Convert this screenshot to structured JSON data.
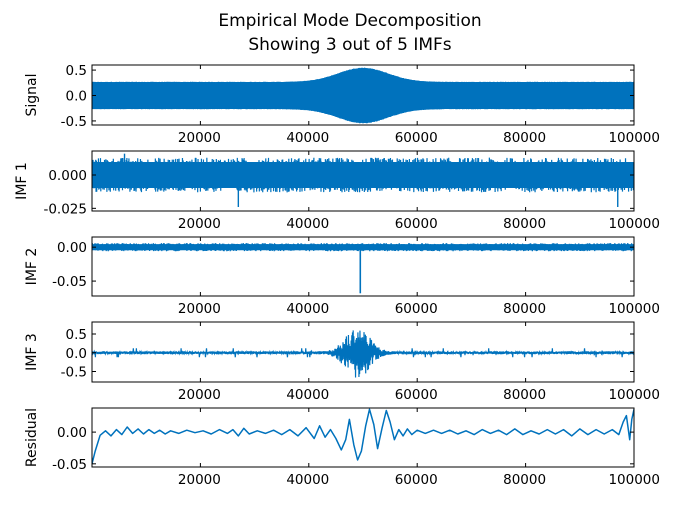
{
  "figure": {
    "title_line1": "Empirical Mode Decomposition",
    "title_line2": "Showing 3 out of 5 IMFs",
    "line_color": "#0072BD"
  },
  "chart_data": [
    {
      "type": "line",
      "name": "signal",
      "ylabel": "Signal",
      "xlim": [
        1,
        100000
      ],
      "ylim": [
        -0.58,
        0.6
      ],
      "yticks": [
        0.5,
        0.0,
        -0.5
      ],
      "ytick_labels": [
        "0.5",
        "0.0",
        "-0.5"
      ],
      "xticks": [
        20000,
        40000,
        60000,
        80000,
        100000
      ],
      "xtick_labels": [
        "20000",
        "40000",
        "60000",
        "80000",
        "100000"
      ],
      "envelope": {
        "base": 0.27,
        "peak": 0.55,
        "center": 50000,
        "width": 6500
      },
      "spike": {
        "x": 50000,
        "y": 0.54
      }
    },
    {
      "type": "line",
      "name": "imf1",
      "ylabel": "IMF 1",
      "xlim": [
        1,
        100000
      ],
      "ylim": [
        -0.027,
        0.018
      ],
      "yticks": [
        0.0,
        -0.025
      ],
      "ytick_labels": [
        "0.000",
        "-0.025"
      ],
      "xticks": [
        20000,
        40000,
        60000,
        80000,
        100000
      ],
      "xtick_labels": [
        "20000",
        "40000",
        "60000",
        "80000",
        "100000"
      ],
      "envelope": {
        "base": 0.013,
        "peak": 0.013,
        "center": 50000,
        "width": 6500
      },
      "outliers": [
        [
          27000,
          -0.024
        ],
        [
          97000,
          -0.024
        ],
        [
          6000,
          0.016
        ]
      ]
    },
    {
      "type": "line",
      "name": "imf2",
      "ylabel": "IMF 2",
      "xlim": [
        1,
        100000
      ],
      "ylim": [
        -0.072,
        0.015
      ],
      "yticks": [
        0.0,
        -0.05
      ],
      "ytick_labels": [
        "0.00",
        "-0.05"
      ],
      "xticks": [
        20000,
        40000,
        60000,
        80000,
        100000
      ],
      "xtick_labels": [
        "20000",
        "40000",
        "60000",
        "80000",
        "100000"
      ],
      "envelope": {
        "base": 0.006,
        "peak": 0.006,
        "center": 50000,
        "width": 6500
      },
      "spike": {
        "x": 49500,
        "y": -0.068
      }
    },
    {
      "type": "line",
      "name": "imf3",
      "ylabel": "IMF 3",
      "xlim": [
        1,
        100000
      ],
      "ylim": [
        -0.78,
        0.82
      ],
      "yticks": [
        0.5,
        0.0,
        -0.5
      ],
      "ytick_labels": [
        "0.5",
        "0.0",
        "-0.5"
      ],
      "xticks": [
        20000,
        40000,
        60000,
        80000,
        100000
      ],
      "xtick_labels": [
        "20000",
        "40000",
        "60000",
        "80000",
        "100000"
      ],
      "envelope": {
        "base": 0.04,
        "peak": 0.7,
        "center": 49000,
        "width": 3000
      }
    },
    {
      "type": "line",
      "name": "residual",
      "ylabel": "Residual",
      "xlim": [
        1,
        100000
      ],
      "ylim": [
        -0.055,
        0.038
      ],
      "yticks": [
        0.0,
        -0.05
      ],
      "ytick_labels": [
        "0.00",
        "-0.05"
      ],
      "xticks": [
        20000,
        40000,
        60000,
        80000,
        100000
      ],
      "xtick_labels": [
        "20000",
        "40000",
        "60000",
        "80000",
        "100000"
      ],
      "points": [
        [
          0,
          -0.05
        ],
        [
          600,
          -0.03
        ],
        [
          1500,
          -0.005
        ],
        [
          2500,
          0.002
        ],
        [
          3500,
          -0.006
        ],
        [
          4500,
          0.004
        ],
        [
          5500,
          -0.004
        ],
        [
          6500,
          0.008
        ],
        [
          7500,
          -0.002
        ],
        [
          8500,
          0.005
        ],
        [
          9500,
          -0.003
        ],
        [
          10500,
          0.004
        ],
        [
          11500,
          -0.002
        ],
        [
          12500,
          0.003
        ],
        [
          13500,
          -0.003
        ],
        [
          14500,
          0.002
        ],
        [
          16000,
          -0.002
        ],
        [
          17500,
          0.003
        ],
        [
          19000,
          -0.001
        ],
        [
          20500,
          0.002
        ],
        [
          22000,
          -0.003
        ],
        [
          23500,
          0.004
        ],
        [
          25000,
          -0.002
        ],
        [
          26000,
          0.004
        ],
        [
          27000,
          -0.006
        ],
        [
          28000,
          0.006
        ],
        [
          29000,
          -0.003
        ],
        [
          30500,
          0.002
        ],
        [
          32000,
          -0.002
        ],
        [
          33500,
          0.003
        ],
        [
          35000,
          -0.004
        ],
        [
          36500,
          0.004
        ],
        [
          38000,
          -0.006
        ],
        [
          39500,
          0.007
        ],
        [
          41000,
          -0.01
        ],
        [
          42000,
          0.01
        ],
        [
          43000,
          -0.008
        ],
        [
          44000,
          0.004
        ],
        [
          45000,
          -0.01
        ],
        [
          46000,
          -0.028
        ],
        [
          46800,
          -0.012
        ],
        [
          47500,
          0.02
        ],
        [
          48300,
          -0.02
        ],
        [
          49000,
          -0.044
        ],
        [
          49700,
          -0.03
        ],
        [
          50500,
          0.01
        ],
        [
          51200,
          0.036
        ],
        [
          52000,
          0.012
        ],
        [
          52700,
          -0.026
        ],
        [
          53500,
          0.006
        ],
        [
          54300,
          0.034
        ],
        [
          55000,
          0.016
        ],
        [
          55800,
          -0.012
        ],
        [
          56600,
          0.004
        ],
        [
          57400,
          -0.006
        ],
        [
          58200,
          0.005
        ],
        [
          59000,
          -0.004
        ],
        [
          60000,
          0.003
        ],
        [
          61500,
          -0.002
        ],
        [
          63000,
          0.003
        ],
        [
          64500,
          -0.002
        ],
        [
          66000,
          0.003
        ],
        [
          67500,
          -0.003
        ],
        [
          69000,
          0.002
        ],
        [
          70500,
          -0.004
        ],
        [
          72000,
          0.004
        ],
        [
          73500,
          -0.002
        ],
        [
          75000,
          0.003
        ],
        [
          76500,
          -0.004
        ],
        [
          78000,
          0.005
        ],
        [
          79500,
          -0.004
        ],
        [
          81000,
          0.002
        ],
        [
          82500,
          -0.003
        ],
        [
          84000,
          0.004
        ],
        [
          85500,
          -0.003
        ],
        [
          87000,
          0.004
        ],
        [
          88500,
          -0.006
        ],
        [
          90000,
          0.005
        ],
        [
          91500,
          -0.004
        ],
        [
          93000,
          0.004
        ],
        [
          94500,
          -0.003
        ],
        [
          96000,
          0.004
        ],
        [
          97200,
          -0.004
        ],
        [
          98000,
          0.016
        ],
        [
          98600,
          0.026
        ],
        [
          99200,
          -0.012
        ],
        [
          99600,
          0.02
        ],
        [
          100000,
          0.036
        ]
      ]
    }
  ]
}
